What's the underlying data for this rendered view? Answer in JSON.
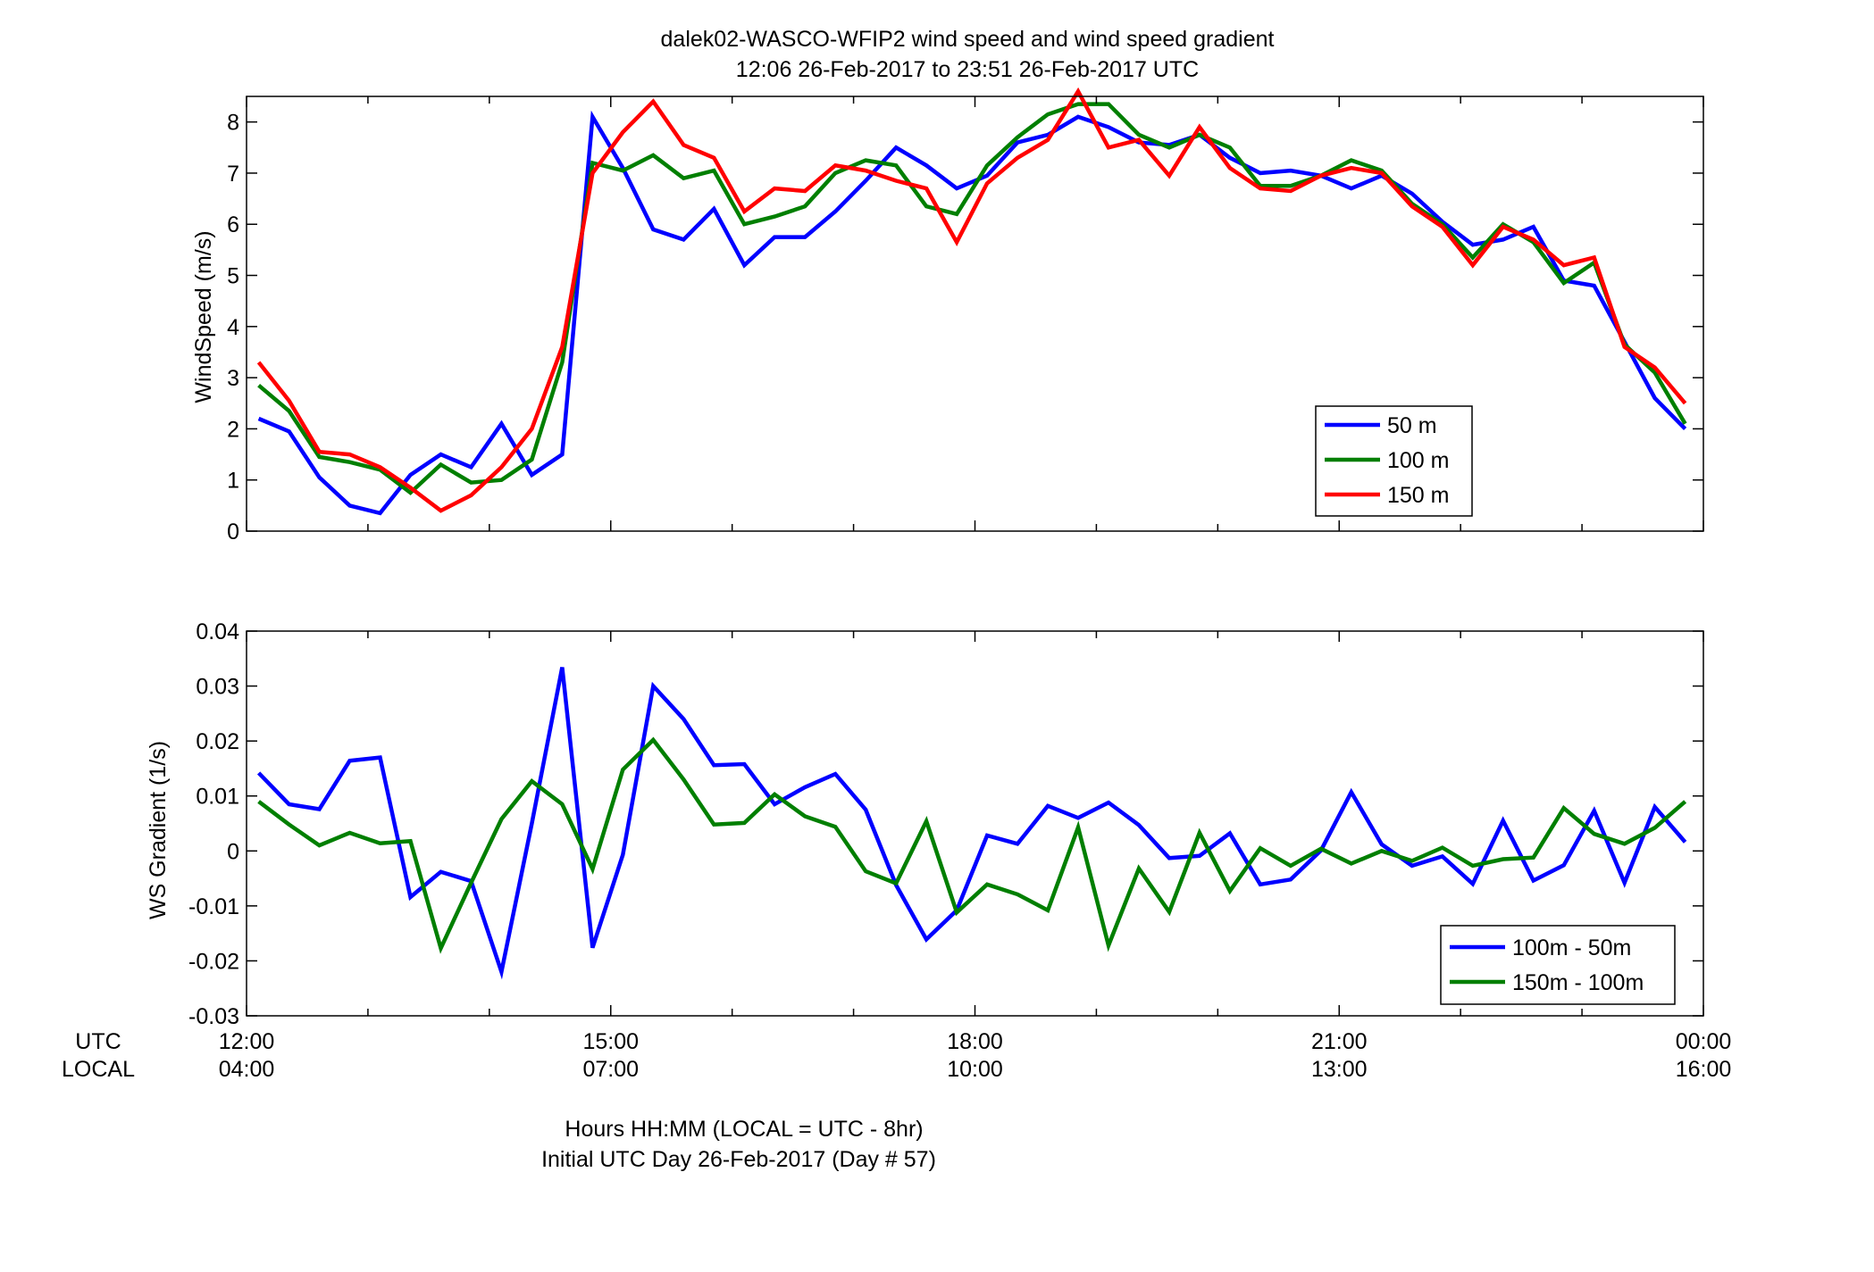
{
  "figure": {
    "title_line1": "dalek02-WASCO-WFIP2  wind speed and wind speed gradient",
    "title_line2": "12:06 26-Feb-2017 to 23:51 26-Feb-2017  UTC",
    "row_label_utc": "UTC",
    "row_label_local": "LOCAL",
    "xlabel_line1": "Hours HH:MM  (LOCAL = UTC - 8hr)",
    "xlabel_line2": "Initial UTC Day 26-Feb-2017 (Day # 57)",
    "utc_ticks": [
      "12:00",
      "15:00",
      "18:00",
      "21:00",
      "00:00"
    ],
    "local_ticks": [
      "04:00",
      "07:00",
      "10:00",
      "13:00",
      "16:00"
    ]
  },
  "chart_data": [
    {
      "type": "line",
      "ylabel": "WindSpeed (m/s)",
      "xlim": [
        12.0,
        24.0
      ],
      "ylim": [
        0,
        8.5
      ],
      "yticks": [
        0,
        1,
        2,
        3,
        4,
        5,
        6,
        7,
        8
      ],
      "ytick_labels": [
        "0",
        "1",
        "2",
        "3",
        "4",
        "5",
        "6",
        "7",
        "8"
      ],
      "grid": false,
      "legend_position": "bottom-right",
      "x": [
        12.1,
        12.35,
        12.6,
        12.85,
        13.1,
        13.35,
        13.6,
        13.85,
        14.1,
        14.35,
        14.6,
        14.85,
        15.1,
        15.35,
        15.6,
        15.85,
        16.1,
        16.35,
        16.6,
        16.85,
        17.1,
        17.35,
        17.6,
        17.85,
        18.1,
        18.35,
        18.6,
        18.85,
        19.1,
        19.35,
        19.6,
        19.85,
        20.1,
        20.35,
        20.6,
        20.85,
        21.1,
        21.35,
        21.6,
        21.85,
        22.1,
        22.35,
        22.6,
        22.85,
        23.1,
        23.35,
        23.6,
        23.85
      ],
      "series": [
        {
          "name": "50 m",
          "color": "#0000ff",
          "values": [
            2.2,
            1.95,
            1.05,
            0.5,
            0.35,
            1.1,
            1.5,
            1.25,
            2.1,
            1.1,
            1.5,
            8.1,
            7.1,
            5.9,
            5.7,
            6.3,
            5.2,
            5.75,
            5.75,
            6.25,
            6.85,
            7.5,
            7.15,
            6.7,
            6.95,
            7.6,
            7.75,
            8.1,
            7.9,
            7.6,
            7.55,
            7.75,
            7.3,
            7.0,
            7.05,
            6.95,
            6.7,
            6.95,
            6.6,
            6.05,
            5.6,
            5.7,
            5.95,
            4.9,
            4.8,
            3.7,
            2.6,
            2.0
          ]
        },
        {
          "name": "100 m",
          "color": "#007f00",
          "values": [
            2.85,
            2.35,
            1.45,
            1.35,
            1.2,
            0.75,
            1.3,
            0.95,
            1.0,
            1.4,
            3.3,
            7.2,
            7.05,
            7.35,
            6.9,
            7.05,
            6.0,
            6.15,
            6.35,
            7.0,
            7.25,
            7.15,
            6.35,
            6.2,
            7.15,
            7.7,
            8.15,
            8.35,
            8.35,
            7.75,
            7.5,
            7.75,
            7.5,
            6.75,
            6.75,
            6.95,
            7.25,
            7.05,
            6.4,
            6.0,
            5.35,
            6.0,
            5.65,
            4.85,
            5.25,
            3.65,
            3.1,
            2.1
          ]
        },
        {
          "name": "150 m",
          "color": "#ff0000",
          "values": [
            3.3,
            2.55,
            1.55,
            1.5,
            1.25,
            0.85,
            0.4,
            0.7,
            1.25,
            2.0,
            3.6,
            7.0,
            7.8,
            8.4,
            7.55,
            7.3,
            6.25,
            6.7,
            6.65,
            7.15,
            7.05,
            6.85,
            6.7,
            5.65,
            6.8,
            7.3,
            7.65,
            8.6,
            7.5,
            7.65,
            6.95,
            7.9,
            7.1,
            6.7,
            6.65,
            6.95,
            7.1,
            7.0,
            6.35,
            5.95,
            5.2,
            5.95,
            5.7,
            5.2,
            5.35,
            3.6,
            3.2,
            2.5
          ]
        }
      ]
    },
    {
      "type": "line",
      "ylabel": "WS Gradient (1/s)",
      "xlim": [
        12.0,
        24.0
      ],
      "ylim": [
        -0.03,
        0.04
      ],
      "yticks": [
        -0.03,
        -0.02,
        -0.01,
        0,
        0.01,
        0.02,
        0.03,
        0.04
      ],
      "ytick_labels": [
        "-0.03",
        "-0.02",
        "-0.01",
        "0",
        "0.01",
        "0.02",
        "0.03",
        "0.04"
      ],
      "grid": false,
      "legend_position": "bottom-right",
      "x": [
        12.1,
        12.35,
        12.6,
        12.85,
        13.1,
        13.35,
        13.6,
        13.85,
        14.1,
        14.35,
        14.6,
        14.85,
        15.1,
        15.35,
        15.6,
        15.85,
        16.1,
        16.35,
        16.6,
        16.85,
        17.1,
        17.35,
        17.6,
        17.85,
        18.1,
        18.35,
        18.6,
        18.85,
        19.1,
        19.35,
        19.6,
        19.85,
        20.1,
        20.35,
        20.6,
        20.85,
        21.1,
        21.35,
        21.6,
        21.85,
        22.1,
        22.35,
        22.6,
        22.85,
        23.1,
        23.35,
        23.6,
        23.85
      ],
      "series": [
        {
          "name": "100m - 50m",
          "color": "#0000ff",
          "values": [
            0.0142,
            0.0085,
            0.0076,
            0.0164,
            0.017,
            -0.0084,
            -0.0038,
            -0.0055,
            -0.022,
            0.005,
            0.0334,
            -0.0176,
            -0.0007,
            0.03,
            0.024,
            0.0156,
            0.0158,
            0.0085,
            0.0116,
            0.014,
            0.0075,
            -0.0062,
            -0.0161,
            -0.0108,
            0.0028,
            0.0013,
            0.0082,
            0.006,
            0.0088,
            0.0047,
            -0.0013,
            -0.0009,
            0.0032,
            -0.0061,
            -0.0052,
            0.0001,
            0.0107,
            0.0012,
            -0.0027,
            -0.001,
            -0.006,
            0.0055,
            -0.0054,
            -0.0026,
            0.0073,
            -0.0058,
            0.008,
            0.0016
          ]
        },
        {
          "name": "150m - 100m",
          "color": "#007f00",
          "values": [
            0.009,
            0.0048,
            0.001,
            0.0033,
            0.0014,
            0.0018,
            -0.0177,
            -0.0058,
            0.0058,
            0.0127,
            0.0085,
            -0.0033,
            0.0148,
            0.0202,
            0.013,
            0.0048,
            0.0051,
            0.0103,
            0.0063,
            0.0044,
            -0.0037,
            -0.0059,
            0.0054,
            -0.0112,
            -0.0061,
            -0.0079,
            -0.0108,
            0.0043,
            -0.0172,
            -0.0032,
            -0.0111,
            0.0033,
            -0.0073,
            0.0005,
            -0.0027,
            0.0004,
            -0.0023,
            0.0,
            -0.0018,
            0.0006,
            -0.0027,
            -0.0015,
            -0.0012,
            0.0078,
            0.0031,
            0.0013,
            0.0042,
            0.009
          ]
        }
      ]
    }
  ]
}
